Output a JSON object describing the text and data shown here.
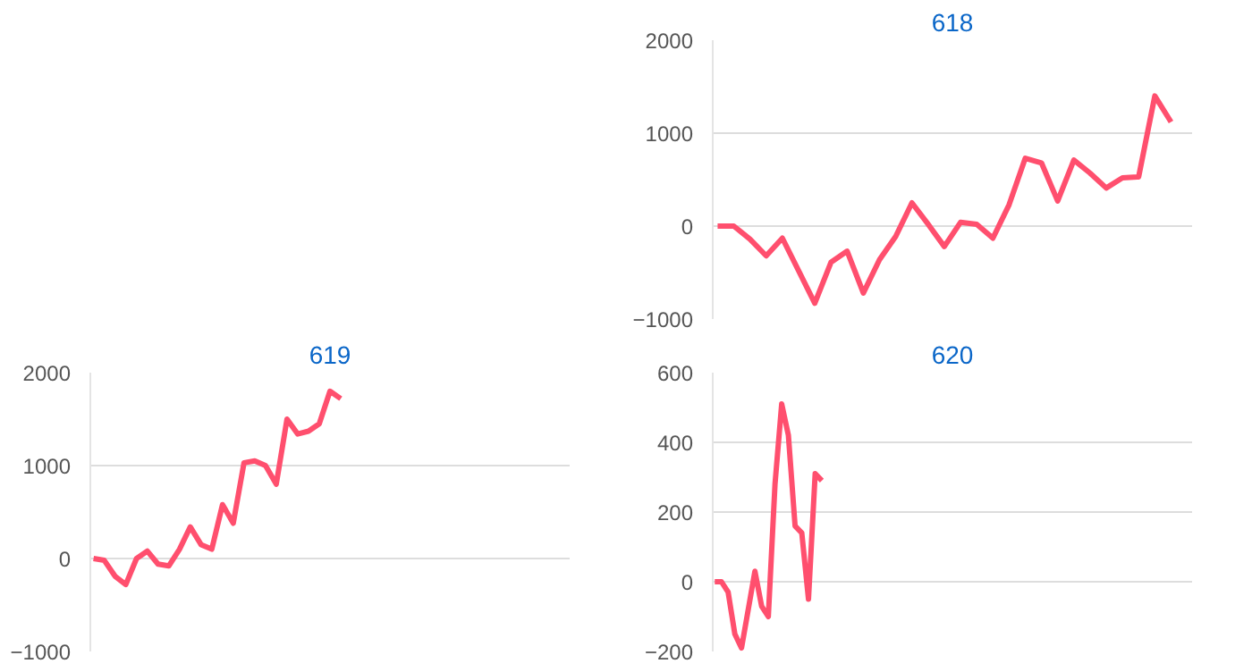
{
  "chart_data": [
    {
      "type": "line",
      "title": "618",
      "categories": [
        null,
        null,
        null,
        null,
        null,
        null,
        null,
        null,
        null,
        null,
        null,
        null,
        null,
        null,
        null,
        null,
        null,
        null,
        null,
        null,
        null,
        null,
        null,
        null,
        null,
        null,
        null,
        null,
        null,
        null
      ],
      "series": [
        {
          "color": "#ff4f6e",
          "values": [
            0,
            0,
            -140,
            -320,
            -130,
            -480,
            -830,
            -390,
            -270,
            -720,
            -360,
            -110,
            250,
            20,
            -220,
            40,
            20,
            -130,
            230,
            730,
            680,
            270,
            710,
            570,
            410,
            520,
            530,
            1400,
            1120,
            null
          ]
        }
      ],
      "ylim": [
        -1000,
        2000
      ],
      "yticks": [
        -1000,
        0,
        1000,
        2000
      ],
      "grid": "y"
    },
    {
      "type": "line",
      "title": "619",
      "categories": [
        null,
        null,
        null,
        null,
        null,
        null,
        null,
        null,
        null,
        null,
        null,
        null,
        null,
        null,
        null,
        null,
        null,
        null,
        null,
        null,
        null,
        null,
        null,
        null,
        null,
        null,
        null,
        null,
        null,
        null,
        null,
        null,
        null,
        null,
        null,
        null,
        null,
        null,
        null,
        null,
        null,
        null,
        null,
        null,
        null
      ],
      "series": [
        {
          "color": "#ff4f6e",
          "values": [
            0,
            -20,
            -190,
            -280,
            0,
            80,
            -60,
            -80,
            100,
            340,
            150,
            100,
            580,
            380,
            1030,
            1050,
            1000,
            800,
            1500,
            1340,
            1370,
            1450,
            1800,
            1720,
            null,
            null,
            null,
            null,
            null,
            null,
            null,
            null,
            null,
            null,
            null,
            null,
            null,
            null,
            null,
            null,
            null,
            null,
            null,
            null,
            null
          ]
        }
      ],
      "ylim": [
        -1000,
        2000
      ],
      "yticks": [
        -1000,
        0,
        1000,
        2000
      ],
      "grid": "y"
    },
    {
      "type": "line",
      "title": "620",
      "categories": [
        null,
        null,
        null,
        null,
        null,
        null,
        null,
        null,
        null,
        null,
        null,
        null,
        null,
        null,
        null,
        null,
        null,
        null,
        null,
        null,
        null,
        null,
        null,
        null,
        null,
        null,
        null,
        null,
        null,
        null,
        null,
        null,
        null,
        null,
        null,
        null,
        null,
        null,
        null,
        null,
        null,
        null,
        null,
        null,
        null,
        null,
        null,
        null,
        null,
        null,
        null,
        null,
        null,
        null,
        null,
        null,
        null,
        null,
        null,
        null,
        null,
        null,
        null,
        null,
        null,
        null,
        null,
        null,
        null,
        null,
        null,
        null
      ],
      "series": [
        {
          "color": "#ff4f6e",
          "values": [
            0,
            0,
            -30,
            -150,
            -190,
            -80,
            30,
            -70,
            -100,
            280,
            510,
            420,
            160,
            140,
            -50,
            310,
            290,
            null,
            null,
            null,
            null,
            null,
            null,
            null,
            null,
            null,
            null,
            null,
            null,
            null,
            null,
            null,
            null,
            null,
            null,
            null,
            null,
            null,
            null,
            null,
            null,
            null,
            null,
            null,
            null,
            null,
            null,
            null,
            null,
            null,
            null,
            null,
            null,
            null,
            null,
            null,
            null,
            null,
            null,
            null,
            null,
            null,
            null,
            null,
            null,
            null,
            null,
            null,
            null,
            null,
            null,
            null
          ]
        }
      ],
      "ylim": [
        -200,
        600
      ],
      "yticks": [
        -200,
        0,
        200,
        400,
        600
      ],
      "grid": "y"
    }
  ]
}
